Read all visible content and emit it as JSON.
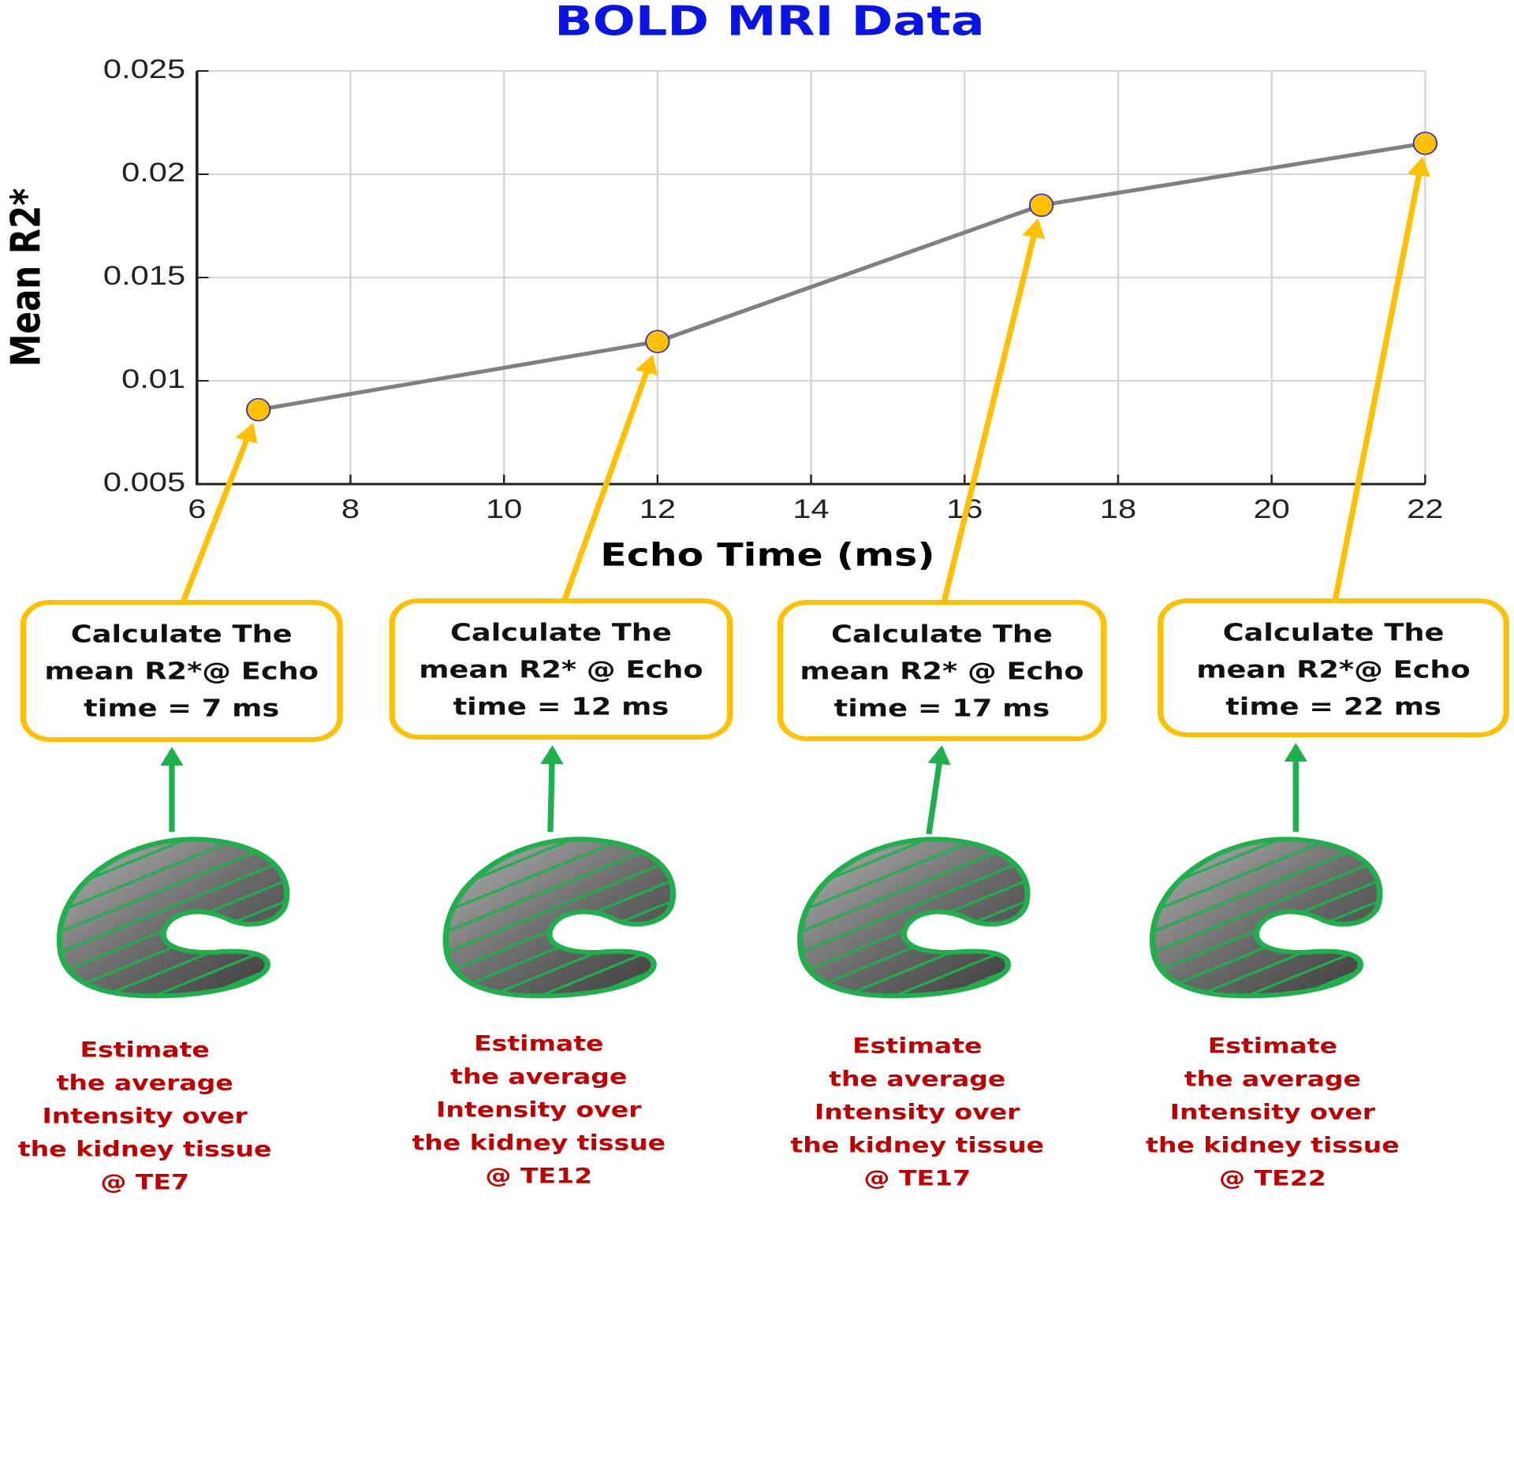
{
  "chart_data": {
    "type": "line",
    "title": "BOLD MRI Data",
    "x_label": "Echo Time (ms)",
    "y_label": "Mean R2*",
    "x": [
      6.8,
      12,
      17,
      22
    ],
    "series": [
      {
        "name": "Mean R2*",
        "color": "#808080",
        "marker_color": "#ffc000",
        "values": [
          0.0086,
          0.0119,
          0.0185,
          0.0215
        ]
      }
    ],
    "xlim": [
      6,
      22
    ],
    "xticks": [
      6,
      8,
      10,
      12,
      14,
      16,
      18,
      20,
      22
    ],
    "ylim": [
      0.005,
      0.025
    ],
    "yticks": [
      0.005,
      0.01,
      0.015,
      0.02,
      0.025
    ],
    "grid": true,
    "annotations": [
      {
        "box": [
          "Calculate The",
          "mean R2*@ Echo",
          "time = 7 ms"
        ],
        "caption": [
          "Estimate",
          "the average",
          "Intensity over",
          "the kidney tissue",
          "@ TE7"
        ]
      },
      {
        "box": [
          "Calculate The",
          "mean R2* @ Echo",
          "time = 12 ms"
        ],
        "caption": [
          "Estimate",
          "the average",
          "Intensity over",
          "the kidney tissue",
          "@ TE12"
        ]
      },
      {
        "box": [
          "Calculate The",
          "mean R2* @ Echo",
          "time = 17 ms"
        ],
        "caption": [
          "Estimate",
          "the average",
          "Intensity over",
          "the kidney tissue",
          "@ TE17"
        ]
      },
      {
        "box": [
          "Calculate The",
          "mean R2*@ Echo",
          "time = 22 ms"
        ],
        "caption": [
          "Estimate",
          "the average",
          "Intensity over",
          "the kidney tissue",
          "@ TE22"
        ]
      }
    ]
  }
}
